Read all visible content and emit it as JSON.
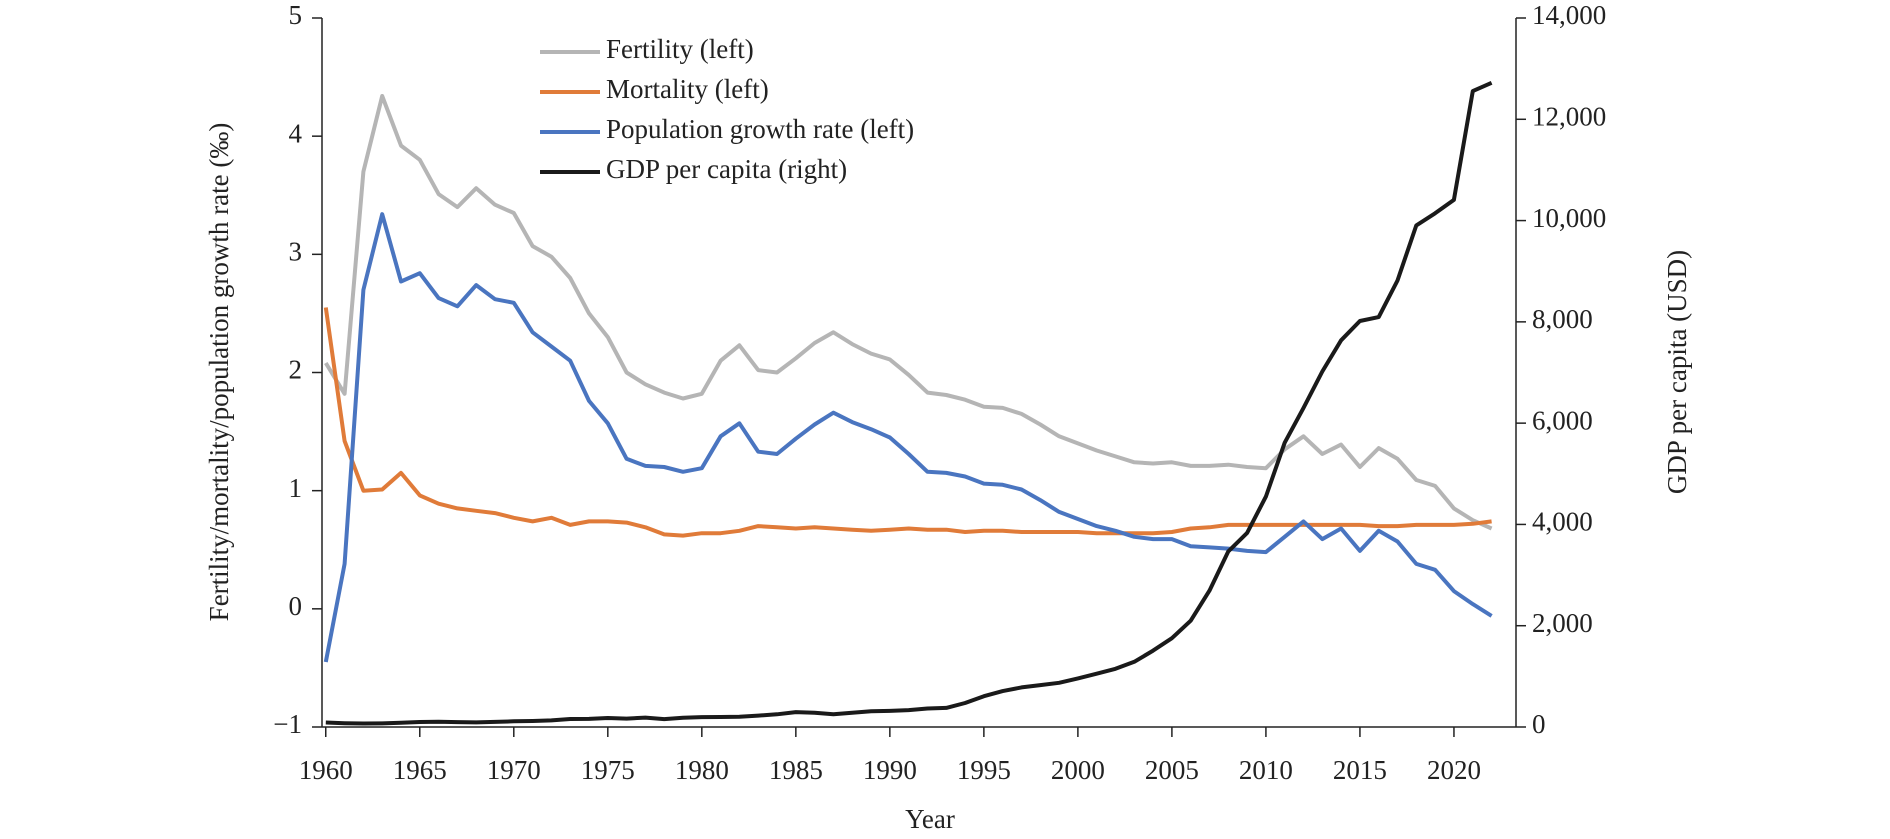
{
  "chart_data": {
    "type": "line",
    "x_label": "Year",
    "y_label": "Fertility/mortality/population growth rate (‰)",
    "y2_label": "GDP per capita (USD)",
    "x": [
      1960,
      1961,
      1962,
      1963,
      1964,
      1965,
      1966,
      1967,
      1968,
      1969,
      1970,
      1971,
      1972,
      1973,
      1974,
      1975,
      1976,
      1977,
      1978,
      1979,
      1980,
      1981,
      1982,
      1983,
      1984,
      1985,
      1986,
      1987,
      1988,
      1989,
      1990,
      1991,
      1992,
      1993,
      1994,
      1995,
      1996,
      1997,
      1998,
      1999,
      2000,
      2001,
      2002,
      2003,
      2004,
      2005,
      2006,
      2007,
      2008,
      2009,
      2010,
      2011,
      2012,
      2013,
      2014,
      2015,
      2016,
      2017,
      2018,
      2019,
      2020,
      2021,
      2022
    ],
    "xlim": [
      1959.8,
      2023.3
    ],
    "xticks": [
      1960,
      1965,
      1970,
      1975,
      1980,
      1985,
      1990,
      1995,
      2000,
      2005,
      2010,
      2015,
      2020
    ],
    "ylim": [
      -1,
      5
    ],
    "yticks": [
      {
        "value": -1,
        "label": "−1"
      },
      0,
      1,
      2,
      3,
      4,
      5
    ],
    "y2lim": [
      0,
      14000
    ],
    "y2ticks": [
      0,
      {
        "value": 2000,
        "label": "2,000"
      },
      {
        "value": 4000,
        "label": "4,000"
      },
      {
        "value": 6000,
        "label": "6,000"
      },
      {
        "value": 8000,
        "label": "8,000"
      },
      {
        "value": 10000,
        "label": "10,000"
      },
      {
        "value": 12000,
        "label": "12,000"
      },
      {
        "value": 14000,
        "label": "14,000"
      }
    ],
    "legend": "upper left",
    "series": [
      {
        "name": "Fertility (left)",
        "color": "#b5b5b5",
        "values": [
          2.08,
          1.82,
          3.7,
          4.34,
          3.92,
          3.8,
          3.51,
          3.4,
          3.56,
          3.42,
          3.35,
          3.07,
          2.98,
          2.8,
          2.5,
          2.3,
          2.0,
          1.9,
          1.83,
          1.78,
          1.82,
          2.1,
          2.23,
          2.02,
          2.0,
          2.12,
          2.25,
          2.34,
          2.24,
          2.16,
          2.11,
          1.98,
          1.83,
          1.81,
          1.77,
          1.71,
          1.7,
          1.65,
          1.56,
          1.46,
          1.4,
          1.34,
          1.29,
          1.24,
          1.23,
          1.24,
          1.21,
          1.21,
          1.22,
          1.2,
          1.19,
          1.35,
          1.46,
          1.31,
          1.39,
          1.2,
          1.36,
          1.27,
          1.09,
          1.04,
          0.85,
          0.75,
          0.68
        ]
      },
      {
        "name": "Mortality (left)",
        "color": "#e07b39",
        "values": [
          2.55,
          1.42,
          1.0,
          1.01,
          1.15,
          0.96,
          0.89,
          0.85,
          0.83,
          0.81,
          0.77,
          0.74,
          0.77,
          0.71,
          0.74,
          0.74,
          0.73,
          0.69,
          0.63,
          0.62,
          0.64,
          0.64,
          0.66,
          0.7,
          0.69,
          0.68,
          0.69,
          0.68,
          0.67,
          0.66,
          0.67,
          0.68,
          0.67,
          0.67,
          0.65,
          0.66,
          0.66,
          0.65,
          0.65,
          0.65,
          0.65,
          0.64,
          0.64,
          0.64,
          0.64,
          0.65,
          0.68,
          0.69,
          0.71,
          0.71,
          0.71,
          0.71,
          0.71,
          0.71,
          0.71,
          0.71,
          0.7,
          0.7,
          0.71,
          0.71,
          0.71,
          0.72,
          0.74
        ]
      },
      {
        "name": "Population growth rate (left)",
        "color": "#4a75c0",
        "values": [
          -0.45,
          0.38,
          2.7,
          3.34,
          2.77,
          2.84,
          2.63,
          2.56,
          2.74,
          2.62,
          2.59,
          2.34,
          2.22,
          2.1,
          1.76,
          1.57,
          1.27,
          1.21,
          1.2,
          1.16,
          1.19,
          1.46,
          1.57,
          1.33,
          1.31,
          1.44,
          1.56,
          1.66,
          1.58,
          1.52,
          1.45,
          1.31,
          1.16,
          1.15,
          1.12,
          1.06,
          1.05,
          1.01,
          0.92,
          0.82,
          0.76,
          0.7,
          0.66,
          0.61,
          0.59,
          0.59,
          0.53,
          0.52,
          0.51,
          0.49,
          0.48,
          0.61,
          0.74,
          0.59,
          0.68,
          0.49,
          0.66,
          0.57,
          0.38,
          0.33,
          0.15,
          0.04,
          -0.06
        ]
      },
      {
        "name": "GDP per capita (right)",
        "color": "#1a1a1a",
        "axis": "y2",
        "values": [
          89,
          76,
          70,
          72,
          85,
          98,
          104,
          97,
          91,
          100,
          113,
          118,
          131,
          157,
          160,
          178,
          165,
          185,
          156,
          183,
          195,
          197,
          203,
          225,
          250,
          294,
          281,
          251,
          283,
          311,
          318,
          333,
          366,
          377,
          473,
          609,
          709,
          781,
          828,
          873,
          959,
          1053,
          1149,
          1288,
          1509,
          1753,
          2099,
          2694,
          3468,
          3832,
          4550,
          5614,
          6301,
          7020,
          7636,
          8016,
          8094,
          8817,
          9905,
          10144,
          10409,
          12556,
          12720
        ]
      }
    ]
  }
}
